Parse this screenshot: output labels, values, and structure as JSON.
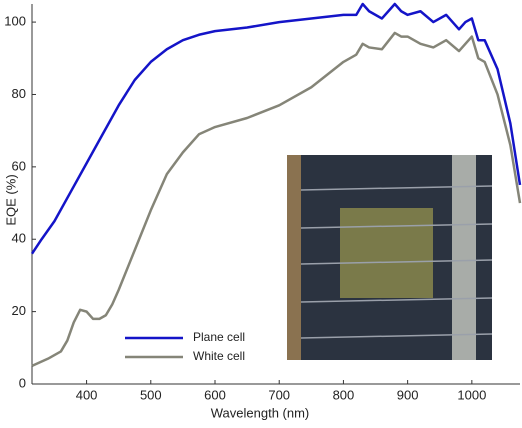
{
  "chart_data": {
    "type": "line",
    "xlabel": "Wavelength (nm)",
    "ylabel": "EQE (%)",
    "xlim": [
      315,
      1075
    ],
    "ylim": [
      0,
      105
    ],
    "xticks": [
      400,
      500,
      600,
      700,
      800,
      900,
      1000
    ],
    "yticks": [
      0,
      20,
      40,
      60,
      80,
      100
    ],
    "legend": "lower left",
    "series": [
      {
        "name": "Plane cell",
        "color": "#1414c8",
        "x": [
          315,
          330,
          350,
          375,
          400,
          425,
          450,
          475,
          500,
          525,
          550,
          575,
          600,
          650,
          700,
          750,
          800,
          820,
          830,
          840,
          860,
          880,
          890,
          900,
          920,
          940,
          960,
          980,
          990,
          1000,
          1010,
          1020,
          1040,
          1060,
          1075
        ],
        "values": [
          36,
          40,
          45,
          53,
          61,
          69,
          77,
          84,
          89,
          92.5,
          95,
          96.5,
          97.5,
          98.5,
          100,
          101,
          102,
          102,
          105,
          103,
          101,
          105,
          103,
          102,
          103,
          100,
          102,
          98,
          100,
          101,
          95,
          95,
          87,
          72,
          55
        ]
      },
      {
        "name": "White cell",
        "color": "#858578",
        "x": [
          315,
          340,
          360,
          370,
          380,
          390,
          400,
          410,
          420,
          430,
          440,
          450,
          475,
          500,
          525,
          550,
          575,
          600,
          650,
          700,
          750,
          800,
          820,
          830,
          840,
          860,
          880,
          890,
          900,
          920,
          940,
          960,
          980,
          1000,
          1010,
          1020,
          1040,
          1060,
          1075
        ],
        "values": [
          5,
          7,
          9,
          12,
          17,
          20.5,
          20,
          18,
          18,
          19,
          22,
          26,
          37,
          48,
          58,
          64,
          69,
          71,
          73.5,
          77,
          82,
          89,
          91,
          94,
          93,
          92.5,
          97,
          96,
          96,
          94,
          93,
          95,
          92,
          96,
          90,
          89,
          80,
          66,
          50
        ]
      }
    ]
  }
}
